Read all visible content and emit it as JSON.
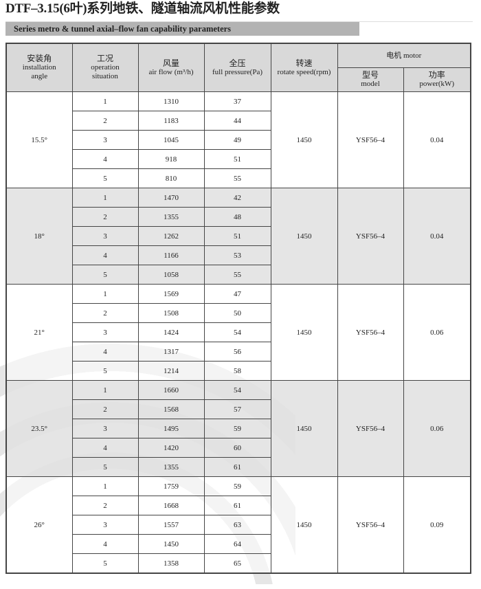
{
  "title": "DTF–3.15(6叶)系列地铁、隧道轴流风机性能参数",
  "subtitle": "Series metro & tunnel axial–flow fan capability parameters",
  "headers": {
    "angle_cn": "安装角",
    "angle_en1": "installation",
    "angle_en2": "angle",
    "situation_cn": "工况",
    "situation_en1": "operation",
    "situation_en2": "situation",
    "airflow_cn": "风量",
    "airflow_en": "air flow (m³/h)",
    "pressure_cn": "全压",
    "pressure_en": "full pressure(Pa)",
    "speed_cn": "转速",
    "speed_en": "rotate speed(rpm)",
    "motor": "电机 motor",
    "model_cn": "型号",
    "model_en": "model",
    "power_cn": "功率",
    "power_en": "power(kW)"
  },
  "groups": [
    {
      "angle": "15.5°",
      "speed": "1450",
      "model": "YSF56–4",
      "power": "0.04",
      "rows": [
        [
          "1",
          "1310",
          "37"
        ],
        [
          "2",
          "1183",
          "44"
        ],
        [
          "3",
          "1045",
          "49"
        ],
        [
          "4",
          "918",
          "51"
        ],
        [
          "5",
          "810",
          "55"
        ]
      ]
    },
    {
      "angle": "18°",
      "speed": "1450",
      "model": "YSF56–4",
      "power": "0.04",
      "rows": [
        [
          "1",
          "1470",
          "42"
        ],
        [
          "2",
          "1355",
          "48"
        ],
        [
          "3",
          "1262",
          "51"
        ],
        [
          "4",
          "1166",
          "53"
        ],
        [
          "5",
          "1058",
          "55"
        ]
      ]
    },
    {
      "angle": "21°",
      "speed": "1450",
      "model": "YSF56–4",
      "power": "0.06",
      "rows": [
        [
          "1",
          "1569",
          "47"
        ],
        [
          "2",
          "1508",
          "50"
        ],
        [
          "3",
          "1424",
          "54"
        ],
        [
          "4",
          "1317",
          "56"
        ],
        [
          "5",
          "1214",
          "58"
        ]
      ]
    },
    {
      "angle": "23.5°",
      "speed": "1450",
      "model": "YSF56–4",
      "power": "0.06",
      "rows": [
        [
          "1",
          "1660",
          "54"
        ],
        [
          "2",
          "1568",
          "57"
        ],
        [
          "3",
          "1495",
          "59"
        ],
        [
          "4",
          "1420",
          "60"
        ],
        [
          "5",
          "1355",
          "61"
        ]
      ]
    },
    {
      "angle": "26°",
      "speed": "1450",
      "model": "YSF56–4",
      "power": "0.09",
      "rows": [
        [
          "1",
          "1759",
          "59"
        ],
        [
          "2",
          "1668",
          "61"
        ],
        [
          "3",
          "1557",
          "63"
        ],
        [
          "4",
          "1450",
          "64"
        ],
        [
          "5",
          "1358",
          "65"
        ]
      ]
    }
  ]
}
